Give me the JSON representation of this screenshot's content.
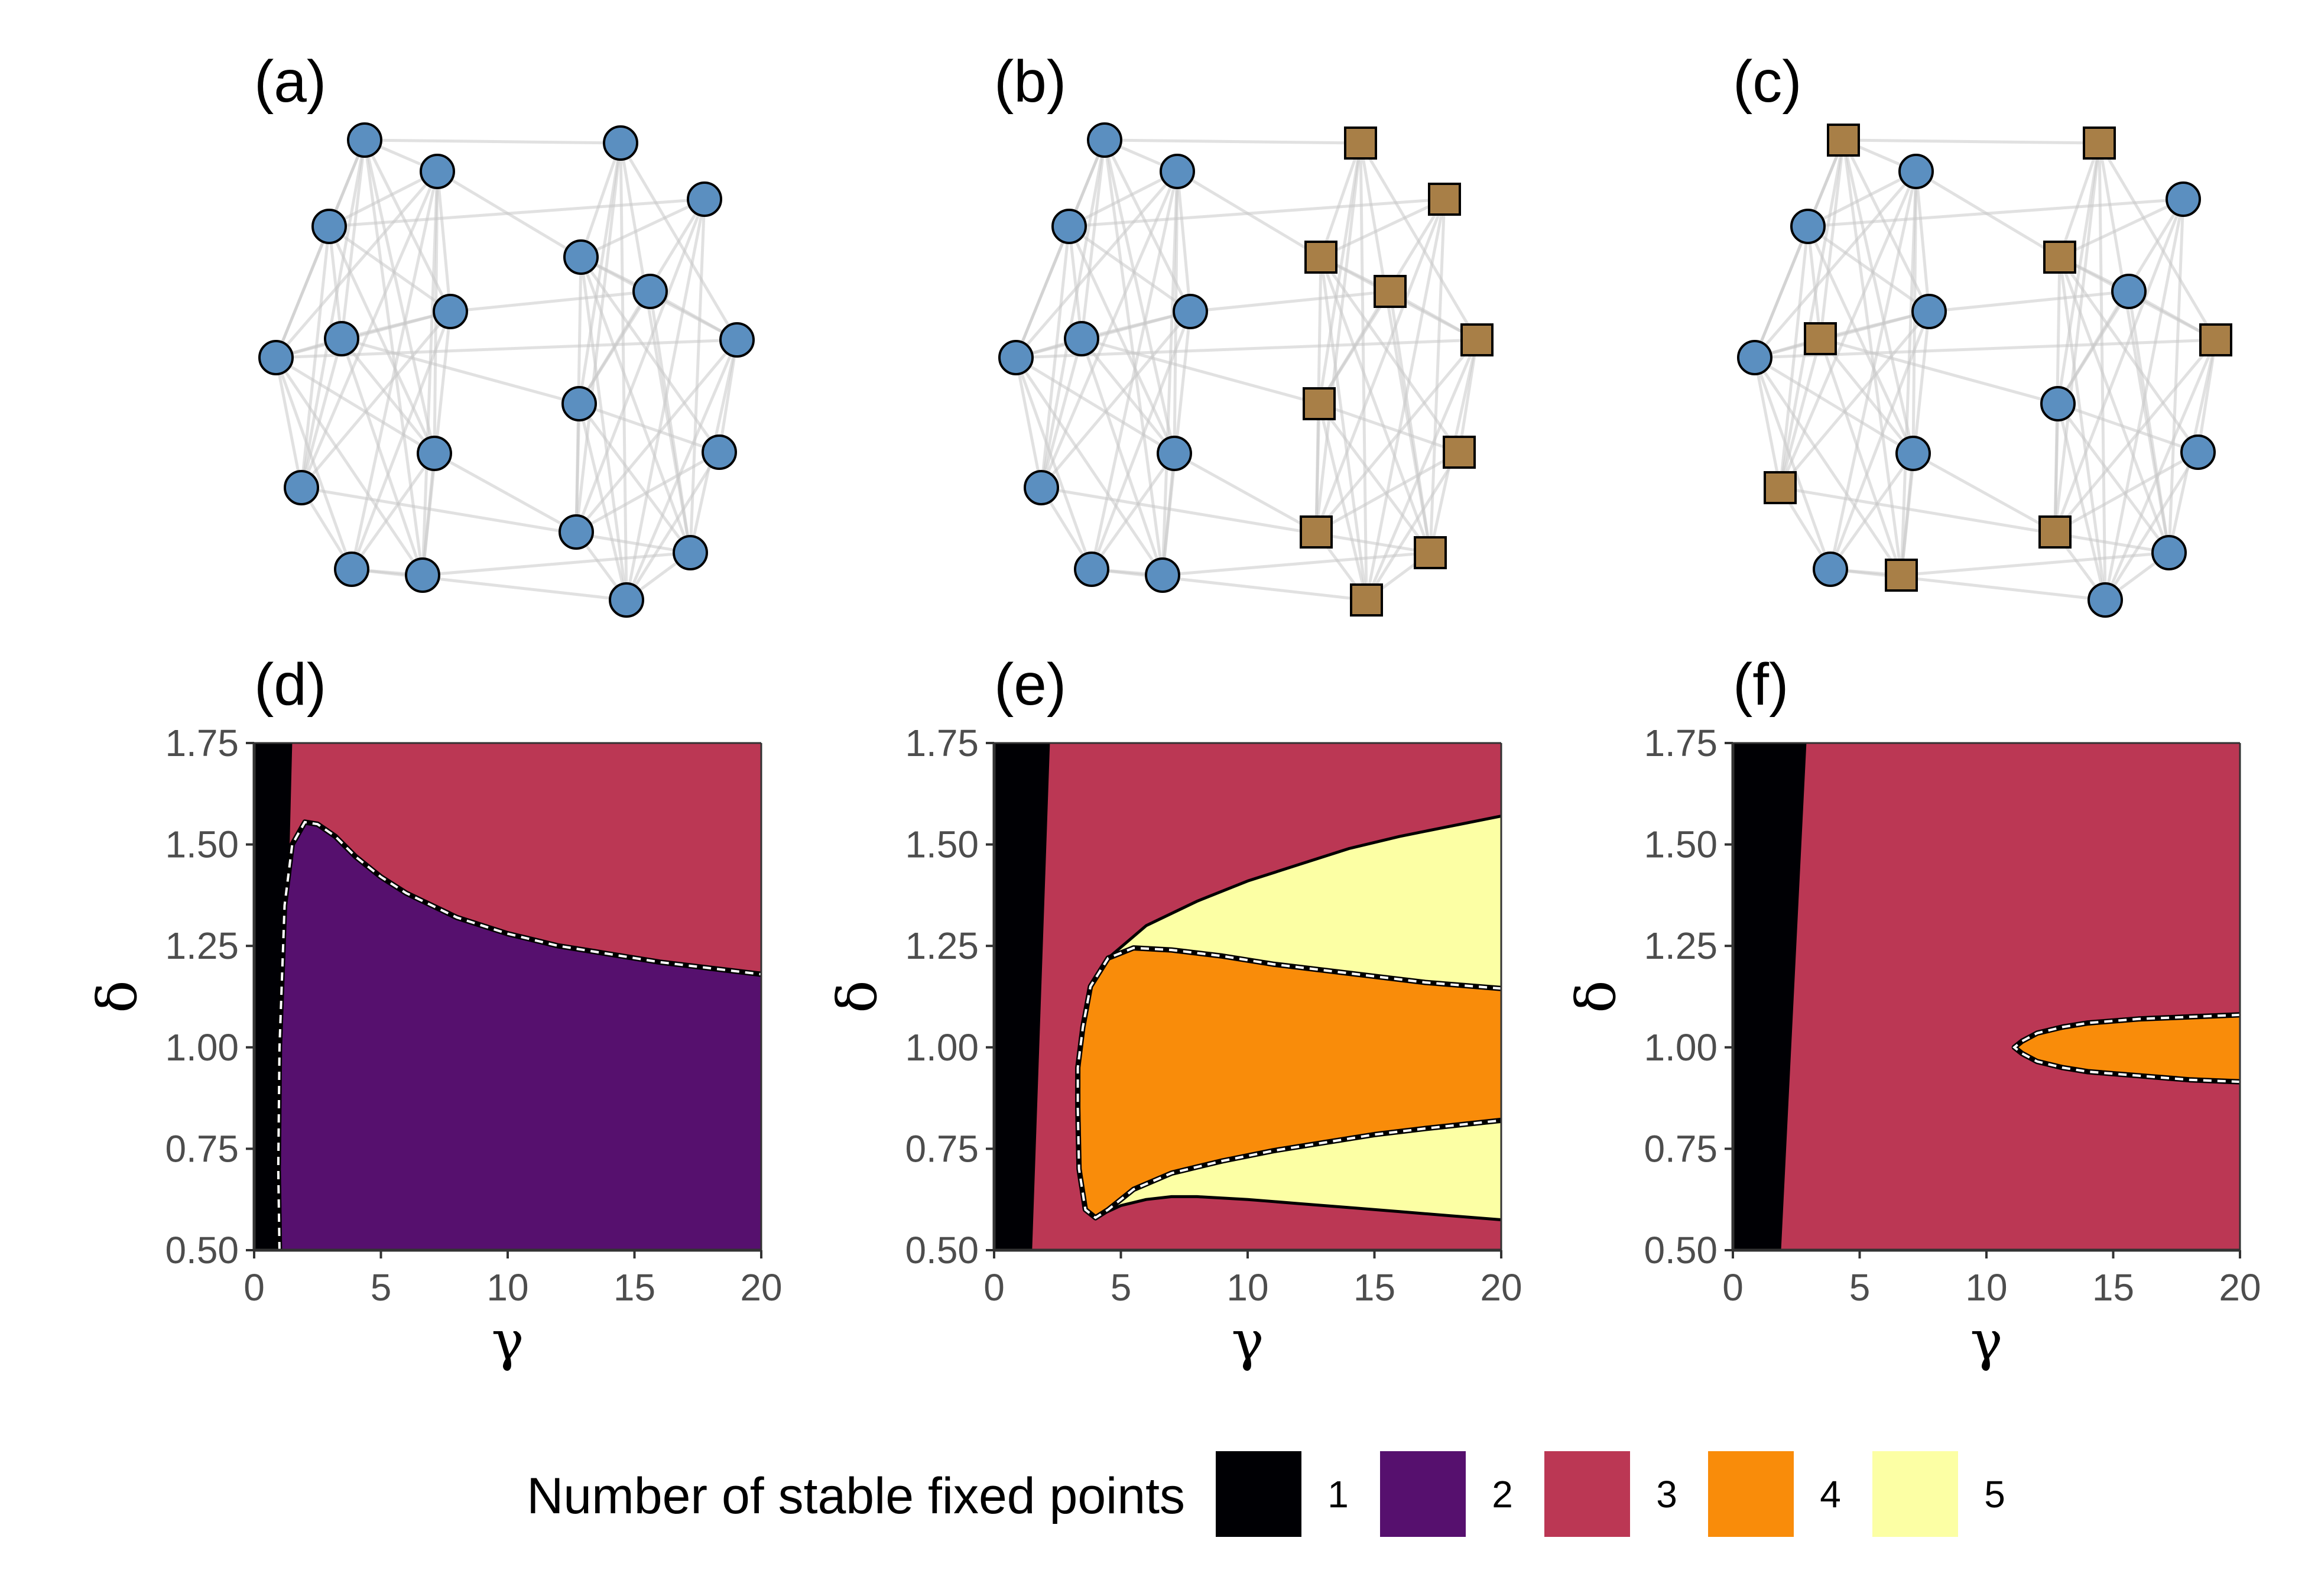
{
  "colors": {
    "node_circle": "#5b8fc0",
    "node_square": "#a87f47",
    "node_stroke": "#000000",
    "edge": "#c8c8c8",
    "one": "#000004",
    "two": "#56106e",
    "three": "#bb3754",
    "four": "#f98c0a",
    "five": "#fcffa4"
  },
  "network_panels": [
    {
      "label": "(a)",
      "squares": []
    },
    {
      "label": "(b)",
      "squares": [
        10,
        11,
        12,
        13,
        14,
        15,
        16,
        17,
        18,
        19
      ]
    },
    {
      "label": "(c)",
      "squares": [
        0,
        4,
        7,
        9,
        10,
        12,
        14,
        17
      ]
    }
  ],
  "chart_data": [
    {
      "type": "heatmap",
      "label": "(d)",
      "xlabel": "γ",
      "ylabel": "δ",
      "xlim": [
        0,
        20
      ],
      "ylim": [
        0.5,
        1.75
      ],
      "x_ticks": [
        "0",
        "5",
        "10",
        "15",
        "20"
      ],
      "y_ticks": [
        "0.50",
        "0.75",
        "1.00",
        "1.25",
        "1.50",
        "1.75"
      ],
      "background": 3,
      "regions": [
        {
          "stable_fixed_points": 1,
          "points": [
            [
              0,
              0.5
            ],
            [
              0,
              1.75
            ],
            [
              1.5,
              1.75
            ],
            [
              1.0,
              0.5
            ]
          ]
        },
        {
          "stable_fixed_points": 2,
          "points": [
            [
              1.0,
              0.5
            ],
            [
              0.95,
              0.7
            ],
            [
              1.0,
              1.0
            ],
            [
              1.2,
              1.35
            ],
            [
              1.5,
              1.5
            ],
            [
              2.0,
              1.555
            ],
            [
              2.5,
              1.55
            ],
            [
              3.2,
              1.52
            ],
            [
              4,
              1.47
            ],
            [
              5,
              1.42
            ],
            [
              6,
              1.38
            ],
            [
              7,
              1.35
            ],
            [
              8,
              1.32
            ],
            [
              10,
              1.28
            ],
            [
              12,
              1.25
            ],
            [
              14,
              1.23
            ],
            [
              16,
              1.21
            ],
            [
              18,
              1.195
            ],
            [
              20,
              1.18
            ],
            [
              20,
              0.5
            ]
          ]
        }
      ],
      "bifurcation_curves": [
        {
          "style": "dashed",
          "points": [
            [
              1.0,
              0.5
            ],
            [
              0.95,
              0.7
            ],
            [
              1.0,
              1.0
            ],
            [
              1.2,
              1.35
            ],
            [
              1.5,
              1.5
            ],
            [
              2.0,
              1.555
            ],
            [
              2.5,
              1.55
            ],
            [
              3.2,
              1.52
            ],
            [
              4,
              1.47
            ],
            [
              5,
              1.42
            ],
            [
              6,
              1.38
            ],
            [
              7,
              1.35
            ],
            [
              8,
              1.32
            ],
            [
              10,
              1.28
            ],
            [
              12,
              1.25
            ],
            [
              14,
              1.23
            ],
            [
              16,
              1.21
            ],
            [
              18,
              1.195
            ],
            [
              20,
              1.18
            ]
          ]
        }
      ]
    },
    {
      "type": "heatmap",
      "label": "(e)",
      "xlabel": "γ",
      "ylabel": "δ",
      "xlim": [
        0,
        20
      ],
      "ylim": [
        0.5,
        1.75
      ],
      "x_ticks": [
        "0",
        "5",
        "10",
        "15",
        "20"
      ],
      "y_ticks": [
        "0.50",
        "0.75",
        "1.00",
        "1.25",
        "1.50",
        "1.75"
      ],
      "background": 3,
      "regions": [
        {
          "stable_fixed_points": 1,
          "points": [
            [
              0,
              0.5
            ],
            [
              0,
              1.75
            ],
            [
              2.2,
              1.75
            ],
            [
              1.5,
              0.5
            ]
          ]
        },
        {
          "stable_fixed_points": 5,
          "points": [
            [
              3.5,
              1.05
            ],
            [
              3.8,
              1.15
            ],
            [
              4.5,
              1.22
            ],
            [
              6,
              1.3
            ],
            [
              8,
              1.36
            ],
            [
              10,
              1.41
            ],
            [
              12,
              1.45
            ],
            [
              14,
              1.49
            ],
            [
              16,
              1.52
            ],
            [
              18,
              1.545
            ],
            [
              20,
              1.57
            ],
            [
              20,
              0.575
            ],
            [
              18,
              0.585
            ],
            [
              16,
              0.595
            ],
            [
              14,
              0.605
            ],
            [
              12,
              0.615
            ],
            [
              10,
              0.625
            ],
            [
              8,
              0.632
            ],
            [
              7,
              0.632
            ],
            [
              6,
              0.625
            ],
            [
              5,
              0.61
            ],
            [
              4.3,
              0.59
            ],
            [
              3.8,
              0.6
            ],
            [
              3.4,
              0.68
            ],
            [
              3.3,
              0.8
            ],
            [
              3.3,
              0.95
            ]
          ]
        },
        {
          "stable_fixed_points": 4,
          "points": [
            [
              3.5,
              1.05
            ],
            [
              3.8,
              1.15
            ],
            [
              4.5,
              1.22
            ],
            [
              5.5,
              1.245
            ],
            [
              7,
              1.24
            ],
            [
              9,
              1.225
            ],
            [
              11,
              1.205
            ],
            [
              13,
              1.19
            ],
            [
              15,
              1.175
            ],
            [
              17,
              1.16
            ],
            [
              20,
              1.145
            ],
            [
              20,
              0.82
            ],
            [
              17,
              0.8
            ],
            [
              15,
              0.785
            ],
            [
              13,
              0.765
            ],
            [
              11,
              0.745
            ],
            [
              9,
              0.72
            ],
            [
              7,
              0.69
            ],
            [
              5.5,
              0.65
            ],
            [
              4.5,
              0.6
            ],
            [
              4.0,
              0.58
            ],
            [
              3.6,
              0.6
            ],
            [
              3.35,
              0.7
            ],
            [
              3.3,
              0.85
            ],
            [
              3.3,
              0.95
            ]
          ]
        }
      ],
      "bifurcation_curves": [
        {
          "style": "solid",
          "points": [
            [
              3.5,
              1.05
            ],
            [
              3.8,
              1.15
            ],
            [
              4.5,
              1.22
            ],
            [
              6,
              1.3
            ],
            [
              8,
              1.36
            ],
            [
              10,
              1.41
            ],
            [
              12,
              1.45
            ],
            [
              14,
              1.49
            ],
            [
              16,
              1.52
            ],
            [
              18,
              1.545
            ],
            [
              20,
              1.57
            ]
          ]
        },
        {
          "style": "solid",
          "points": [
            [
              4.3,
              0.59
            ],
            [
              5,
              0.61
            ],
            [
              6,
              0.625
            ],
            [
              7,
              0.632
            ],
            [
              8,
              0.632
            ],
            [
              10,
              0.625
            ],
            [
              12,
              0.615
            ],
            [
              14,
              0.605
            ],
            [
              16,
              0.595
            ],
            [
              18,
              0.585
            ],
            [
              20,
              0.575
            ]
          ]
        },
        {
          "style": "dashed",
          "points": [
            [
              20,
              1.145
            ],
            [
              17,
              1.16
            ],
            [
              15,
              1.175
            ],
            [
              13,
              1.19
            ],
            [
              11,
              1.205
            ],
            [
              9,
              1.225
            ],
            [
              7,
              1.24
            ],
            [
              5.5,
              1.245
            ],
            [
              4.5,
              1.22
            ],
            [
              3.8,
              1.15
            ],
            [
              3.5,
              1.05
            ],
            [
              3.3,
              0.95
            ],
            [
              3.3,
              0.85
            ],
            [
              3.35,
              0.7
            ],
            [
              3.6,
              0.6
            ],
            [
              4.0,
              0.58
            ],
            [
              4.5,
              0.6
            ],
            [
              5.5,
              0.65
            ],
            [
              7,
              0.69
            ],
            [
              9,
              0.72
            ],
            [
              11,
              0.745
            ],
            [
              13,
              0.765
            ],
            [
              15,
              0.785
            ],
            [
              17,
              0.8
            ],
            [
              20,
              0.82
            ]
          ]
        }
      ]
    },
    {
      "type": "heatmap",
      "label": "(f)",
      "xlabel": "γ",
      "ylabel": "δ",
      "xlim": [
        0,
        20
      ],
      "ylim": [
        0.5,
        1.75
      ],
      "x_ticks": [
        "0",
        "5",
        "10",
        "15",
        "20"
      ],
      "y_ticks": [
        "0.50",
        "0.75",
        "1.00",
        "1.25",
        "1.50",
        "1.75"
      ],
      "background": 3,
      "regions": [
        {
          "stable_fixed_points": 1,
          "points": [
            [
              0,
              0.5
            ],
            [
              0,
              1.75
            ],
            [
              2.9,
              1.75
            ],
            [
              1.9,
              0.5
            ]
          ]
        },
        {
          "stable_fixed_points": 4,
          "points": [
            [
              20,
              1.08
            ],
            [
              18,
              1.075
            ],
            [
              16,
              1.07
            ],
            [
              14,
              1.06
            ],
            [
              13,
              1.05
            ],
            [
              12,
              1.035
            ],
            [
              11.4,
              1.015
            ],
            [
              11.1,
              1.0
            ],
            [
              11.4,
              0.985
            ],
            [
              12,
              0.965
            ],
            [
              13,
              0.95
            ],
            [
              14,
              0.94
            ],
            [
              16,
              0.93
            ],
            [
              18,
              0.92
            ],
            [
              20,
              0.915
            ]
          ]
        }
      ],
      "bifurcation_curves": [
        {
          "style": "dashed",
          "points": [
            [
              20,
              1.08
            ],
            [
              18,
              1.075
            ],
            [
              16,
              1.07
            ],
            [
              14,
              1.06
            ],
            [
              13,
              1.05
            ],
            [
              12,
              1.035
            ],
            [
              11.4,
              1.015
            ],
            [
              11.1,
              1.0
            ],
            [
              11.4,
              0.985
            ],
            [
              12,
              0.965
            ],
            [
              13,
              0.95
            ],
            [
              14,
              0.94
            ],
            [
              16,
              0.93
            ],
            [
              18,
              0.92
            ],
            [
              20,
              0.915
            ]
          ]
        }
      ]
    }
  ],
  "legend": {
    "title": "Number of stable fixed points",
    "items": [
      {
        "label": "1",
        "color_key": "one"
      },
      {
        "label": "2",
        "color_key": "two"
      },
      {
        "label": "3",
        "color_key": "three"
      },
      {
        "label": "4",
        "color_key": "four"
      },
      {
        "label": "5",
        "color_key": "five"
      }
    ]
  }
}
